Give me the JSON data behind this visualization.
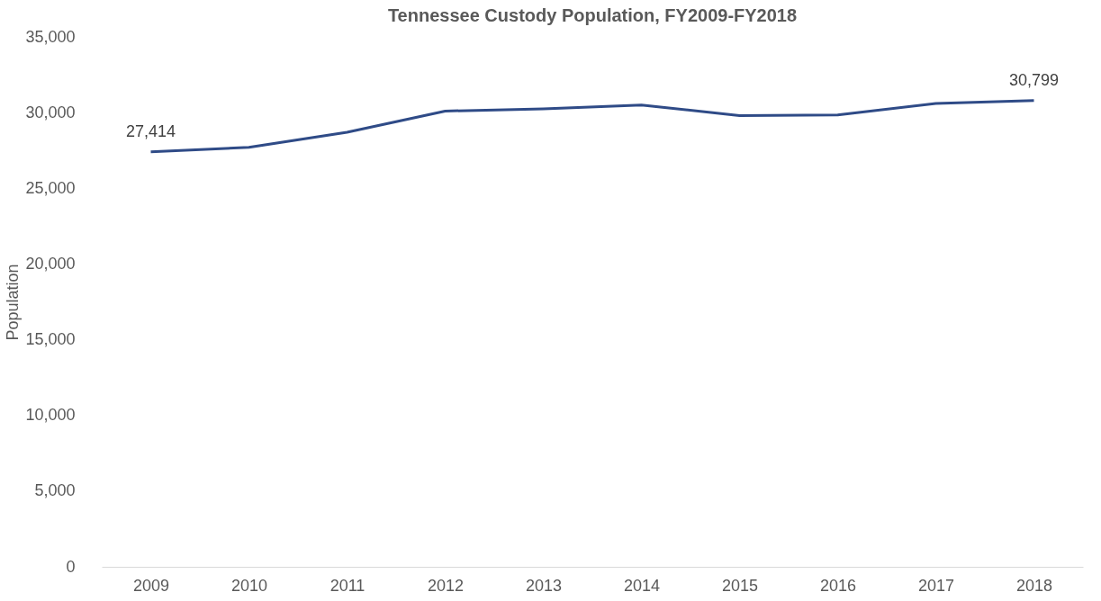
{
  "chart_data": {
    "type": "line",
    "title": "Tennessee Custody Population, FY2009-FY2018",
    "ylabel": "Population",
    "categories": [
      "2009",
      "2010",
      "2011",
      "2012",
      "2013",
      "2014",
      "2015",
      "2016",
      "2017",
      "2018"
    ],
    "series": [
      {
        "color": "#2f4b87",
        "values": [
          27414,
          27700,
          28700,
          30100,
          30250,
          30500,
          29800,
          29850,
          30600,
          30799
        ],
        "value_labels": [
          "27,414",
          null,
          null,
          null,
          null,
          null,
          null,
          null,
          null,
          "30,799"
        ]
      }
    ],
    "ylim": [
      0,
      35000
    ],
    "yticks": [
      0,
      {
        "value": 5000,
        "label": "5,000"
      },
      {
        "value": 10000,
        "label": "10,000"
      },
      {
        "value": 15000,
        "label": "15,000"
      },
      {
        "value": 20000,
        "label": "20,000"
      },
      {
        "value": 25000,
        "label": "25,000"
      },
      {
        "value": 30000,
        "label": "30,000"
      },
      {
        "value": 35000,
        "label": "35,000"
      }
    ],
    "grid": false,
    "marker": "none",
    "line_style": "solid"
  }
}
